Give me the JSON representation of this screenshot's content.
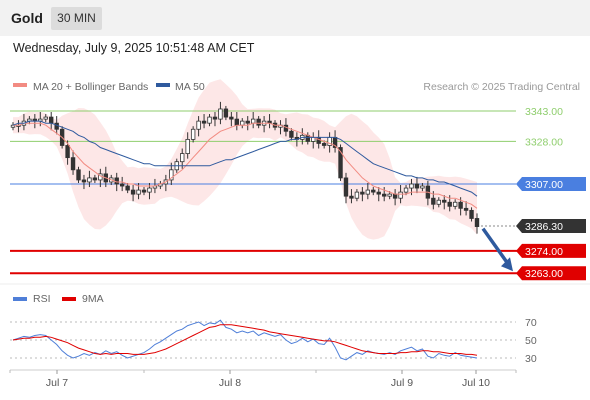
{
  "header": {
    "title": "Gold",
    "timeframe": "30 MIN"
  },
  "timestamp": "Wednesday, July 9, 2025 10:51:48 AM CET",
  "price_panel": {
    "legend": [
      {
        "label": "MA 20 + Bollinger Bands",
        "color": "#f28b82"
      },
      {
        "label": "MA 50",
        "color": "#2f5a9e"
      }
    ],
    "credit": "Research © 2025 Trading Central"
  },
  "rsi_panel": {
    "legend": [
      {
        "label": "RSI",
        "color": "#4f7fd8"
      },
      {
        "label": "9MA",
        "color": "#e00000"
      }
    ]
  },
  "colors": {
    "resistance": "#8fce6d",
    "pivot": "#4a7fe0",
    "support": "#e00000",
    "current": "#333333",
    "bollinger_fill": "#fde1e1",
    "arrow": "#2f5a9e"
  },
  "chart_data": [
    {
      "type": "candlestick",
      "title": "Gold 30 MIN",
      "x_ticks": [
        "Jul 7",
        "Jul 8",
        "Jul 9",
        "Jul 10"
      ],
      "ylim": [
        3250,
        3350
      ],
      "levels": [
        {
          "value": 3343.0,
          "label": "3343.00",
          "kind": "resistance"
        },
        {
          "value": 3328.0,
          "label": "3328.00",
          "kind": "resistance"
        },
        {
          "value": 3307.0,
          "label": "3307.00",
          "kind": "pivot"
        },
        {
          "value": 3286.3,
          "label": "3286.30",
          "kind": "current"
        },
        {
          "value": 3274.0,
          "label": "3274.00",
          "kind": "support"
        },
        {
          "value": 3263.0,
          "label": "3263.00",
          "kind": "support"
        }
      ],
      "path_close": [
        3336,
        3336,
        3338,
        3339,
        3338,
        3339,
        3340,
        3337,
        3334,
        3326,
        3320,
        3314,
        3309,
        3308,
        3310,
        3309,
        3312,
        3308,
        3310,
        3307,
        3306,
        3304,
        3302,
        3304,
        3303,
        3305,
        3306,
        3307,
        3309,
        3314,
        3318,
        3322,
        3329,
        3334,
        3338,
        3337,
        3340,
        3339,
        3344,
        3340,
        3339,
        3336,
        3338,
        3337,
        3339,
        3336,
        3338,
        3337,
        3335,
        3336,
        3333,
        3330,
        3329,
        3331,
        3328,
        3330,
        3327,
        3326,
        3330,
        3325,
        3310,
        3301,
        3300,
        3303,
        3302,
        3304,
        3303,
        3302,
        3301,
        3302,
        3300,
        3303,
        3305,
        3307,
        3305,
        3306,
        3300,
        3297,
        3299,
        3298,
        3296,
        3298,
        3295,
        3294,
        3290,
        3286
      ],
      "ma20": [
        3336,
        3336,
        3337,
        3337,
        3337,
        3337,
        3336,
        3334,
        3332,
        3330,
        3327,
        3323,
        3320,
        3317,
        3315,
        3313,
        3311,
        3310,
        3309,
        3308,
        3308,
        3307,
        3307,
        3306,
        3306,
        3306,
        3306,
        3307,
        3308,
        3310,
        3312,
        3314,
        3317,
        3320,
        3323,
        3326,
        3329,
        3331,
        3333,
        3334,
        3335,
        3336,
        3336,
        3336,
        3337,
        3337,
        3337,
        3337,
        3336,
        3336,
        3335,
        3334,
        3333,
        3332,
        3331,
        3330,
        3329,
        3328,
        3327,
        3326,
        3323,
        3319,
        3316,
        3313,
        3310,
        3308,
        3306,
        3305,
        3304,
        3303,
        3302,
        3302,
        3302,
        3303,
        3303,
        3303,
        3303,
        3302,
        3302,
        3301,
        3300,
        3300,
        3299,
        3298,
        3297,
        3295
      ],
      "ma50": [
        3336,
        3337,
        3337,
        3338,
        3338,
        3338,
        3337,
        3337,
        3336,
        3335,
        3334,
        3333,
        3331,
        3330,
        3328,
        3327,
        3325,
        3324,
        3323,
        3322,
        3321,
        3320,
        3319,
        3318,
        3317,
        3317,
        3316,
        3316,
        3316,
        3316,
        3316,
        3316,
        3316,
        3316,
        3316,
        3316,
        3316,
        3317,
        3318,
        3319,
        3319,
        3320,
        3321,
        3322,
        3323,
        3324,
        3325,
        3326,
        3327,
        3328,
        3328,
        3329,
        3329,
        3330,
        3330,
        3330,
        3330,
        3330,
        3330,
        3330,
        3329,
        3327,
        3325,
        3323,
        3321,
        3319,
        3317,
        3316,
        3315,
        3314,
        3313,
        3312,
        3311,
        3311,
        3310,
        3310,
        3309,
        3309,
        3308,
        3308,
        3307,
        3306,
        3305,
        3304,
        3303,
        3301
      ]
    },
    {
      "type": "line",
      "title": "RSI",
      "ylim": [
        20,
        80
      ],
      "y_ticks": [
        30,
        50,
        70
      ],
      "series": [
        {
          "name": "RSI",
          "values": [
            50,
            52,
            54,
            53,
            55,
            56,
            55,
            50,
            45,
            38,
            33,
            30,
            32,
            35,
            33,
            36,
            34,
            38,
            35,
            37,
            33,
            30,
            32,
            34,
            36,
            40,
            45,
            48,
            52,
            56,
            60,
            62,
            66,
            68,
            70,
            66,
            69,
            68,
            72,
            64,
            62,
            58,
            60,
            58,
            60,
            55,
            58,
            56,
            54,
            56,
            50,
            46,
            48,
            52,
            48,
            51,
            46,
            45,
            52,
            42,
            30,
            28,
            32,
            36,
            34,
            38,
            36,
            35,
            34,
            36,
            34,
            38,
            40,
            42,
            38,
            40,
            32,
            30,
            35,
            33,
            32,
            36,
            33,
            32,
            31,
            30
          ]
        },
        {
          "name": "9MA",
          "values": [
            50,
            51,
            52,
            52,
            53,
            53,
            54,
            53,
            51,
            49,
            47,
            44,
            41,
            39,
            37,
            35,
            34,
            35,
            34,
            35,
            35,
            35,
            34,
            34,
            34,
            35,
            36,
            38,
            40,
            43,
            46,
            49,
            52,
            55,
            58,
            61,
            64,
            65,
            67,
            67,
            67,
            66,
            65,
            64,
            63,
            62,
            61,
            59,
            58,
            57,
            56,
            55,
            54,
            53,
            52,
            51,
            50,
            49,
            49,
            48,
            46,
            44,
            42,
            40,
            38,
            37,
            36,
            35,
            35,
            35,
            35,
            36,
            36,
            37,
            37,
            38,
            38,
            37,
            37,
            36,
            35,
            35,
            35,
            34,
            34,
            33
          ]
        }
      ]
    }
  ]
}
